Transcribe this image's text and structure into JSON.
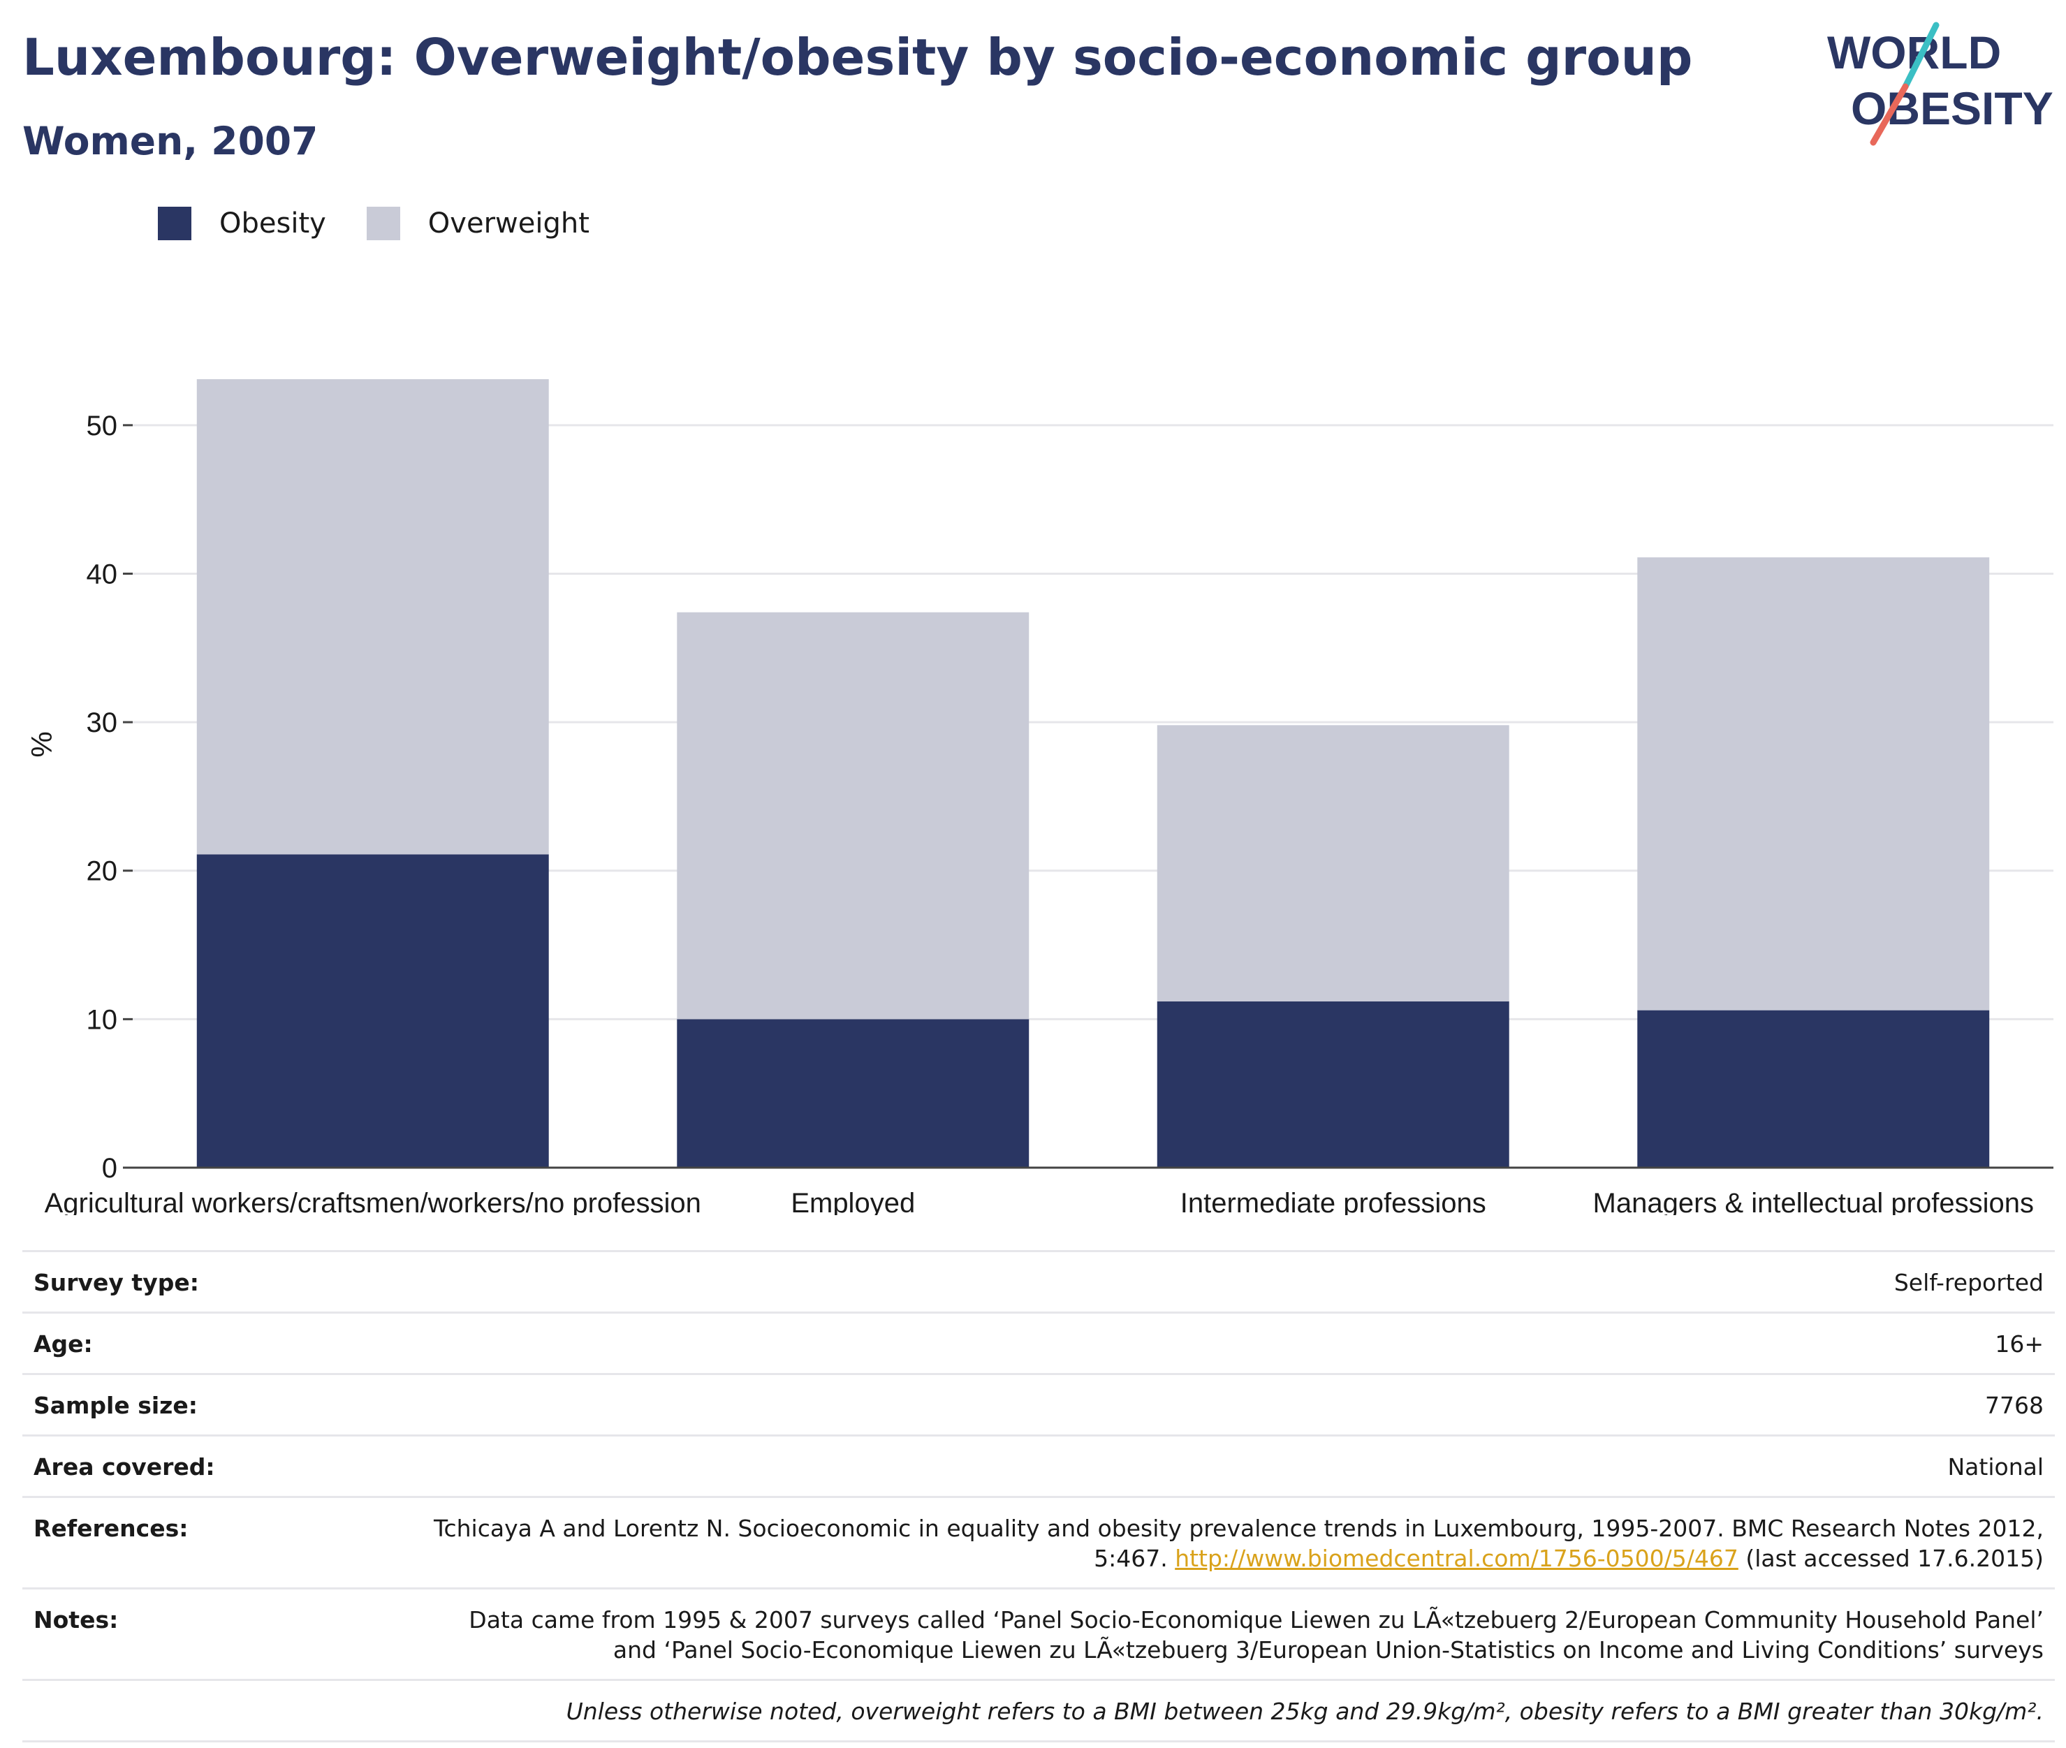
{
  "header": {
    "title": "Luxembourg: Overweight/obesity by socio-economic group",
    "subtitle": "Women, 2007",
    "logo_line1": "WORLD",
    "logo_line2": "OBESITY"
  },
  "colors": {
    "obesity": "#2a3663",
    "overweight": "#c9cbd7",
    "title": "#2a3663",
    "link": "#d9a21b",
    "logo_slash_teal": "#3bbfc4",
    "logo_slash_coral": "#e8685a"
  },
  "legend": [
    {
      "label": "Obesity",
      "color": "#2a3663"
    },
    {
      "label": "Overweight",
      "color": "#c9cbd7"
    }
  ],
  "chart_data": {
    "type": "bar",
    "stacked": true,
    "categories": [
      "Agricultural workers/craftsmen/workers/no profession",
      "Employed",
      "Intermediate professions",
      "Managers & intellectual professions"
    ],
    "series": [
      {
        "name": "Obesity",
        "values": [
          21.1,
          10.0,
          11.2,
          10.6
        ]
      },
      {
        "name": "Overweight",
        "values": [
          32.0,
          27.4,
          18.6,
          30.5
        ]
      }
    ],
    "ylabel": "%",
    "xlabel": "",
    "ylim": [
      0,
      57
    ],
    "yticks": [
      0,
      10,
      20,
      30,
      40,
      50
    ],
    "grid": true,
    "legend_position": "top-left"
  },
  "meta": {
    "survey_type": {
      "label": "Survey type:",
      "value": "Self-reported"
    },
    "age": {
      "label": "Age:",
      "value": "16+"
    },
    "sample_size": {
      "label": "Sample size:",
      "value": "7768"
    },
    "area": {
      "label": "Area covered:",
      "value": "National"
    },
    "references": {
      "label": "References:",
      "text_before": "Tchicaya A and Lorentz N. Socioeconomic in equality and obesity prevalence trends in Luxembourg, 1995-2007. BMC Research Notes 2012, 5:467. ",
      "link": "http://www.biomedcentral.com/1756-0500/5/467",
      "text_after": " (last accessed 17.6.2015)"
    },
    "notes": {
      "label": "Notes:",
      "value": "Data came from 1995 & 2007 surveys called ‘Panel Socio-Economique Liewen zu LÃ«tzebuerg 2/European Community Household Panel’ and ‘Panel Socio-Economique Liewen zu LÃ«tzebuerg 3/European Union-Statistics on Income and Living Conditions’ surveys"
    },
    "footnote": "Unless otherwise noted, overweight refers to a BMI between 25kg and 29.9kg/m², obesity refers to a BMI greater than 30kg/m²."
  }
}
